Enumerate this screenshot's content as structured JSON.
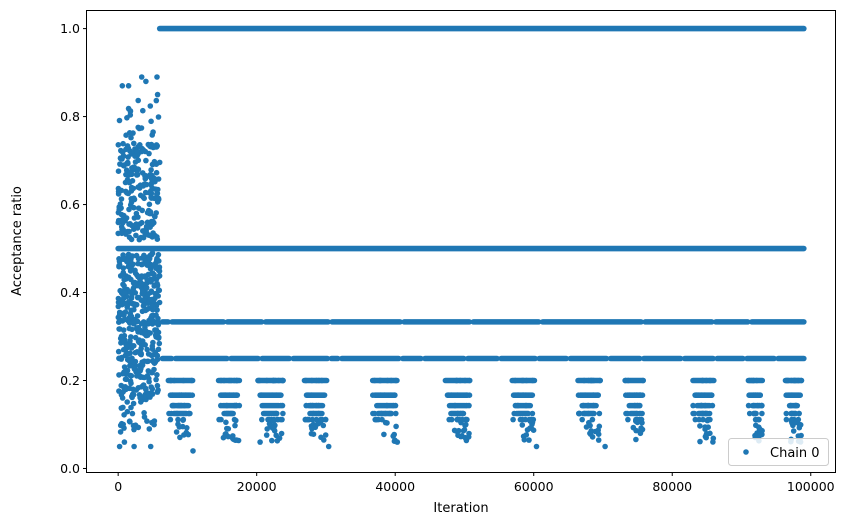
{
  "chart_data": {
    "type": "scatter",
    "xlabel": "Iteration",
    "ylabel": "Acceptance ratio",
    "xlim": [
      -4500,
      103500
    ],
    "ylim": [
      -0.008,
      1.04
    ],
    "xticks": [
      0,
      20000,
      40000,
      60000,
      80000,
      100000
    ],
    "xtick_labels": [
      "0",
      "20000",
      "40000",
      "60000",
      "80000",
      "100000"
    ],
    "yticks": [
      0.0,
      0.2,
      0.4,
      0.6,
      0.8,
      1.0
    ],
    "ytick_labels": [
      "0.0",
      "0.2",
      "0.4",
      "0.6",
      "0.8",
      "1.0"
    ],
    "legend_position": "bottom-right",
    "grid": false,
    "series": [
      {
        "name": "Chain 0",
        "color": "#1f77b4",
        "marker": "circle",
        "warmup_end": 6000,
        "iteration_end": 99000,
        "warmup_value_range": [
          0.04,
          0.89
        ],
        "levels": [
          1.0,
          0.5,
          0.3333,
          0.25,
          0.2,
          0.1667,
          0.1429,
          0.125,
          0.1111
        ],
        "sample_points": [
          [
            200,
            0.05
          ],
          [
            600,
            0.87
          ],
          [
            900,
            0.06
          ],
          [
            1500,
            0.87
          ],
          [
            2300,
            0.05
          ],
          [
            3400,
            0.89
          ],
          [
            4000,
            0.88
          ],
          [
            4700,
            0.05
          ],
          [
            5600,
            0.89
          ],
          [
            5700,
            0.85
          ],
          [
            10800,
            0.04
          ],
          [
            15200,
            0.07
          ],
          [
            20500,
            0.06
          ],
          [
            30400,
            0.05
          ],
          [
            40300,
            0.06
          ],
          [
            50100,
            0.07
          ],
          [
            60400,
            0.05
          ],
          [
            70300,
            0.05
          ],
          [
            75400,
            0.08
          ],
          [
            98600,
            0.075
          ]
        ]
      }
    ]
  }
}
